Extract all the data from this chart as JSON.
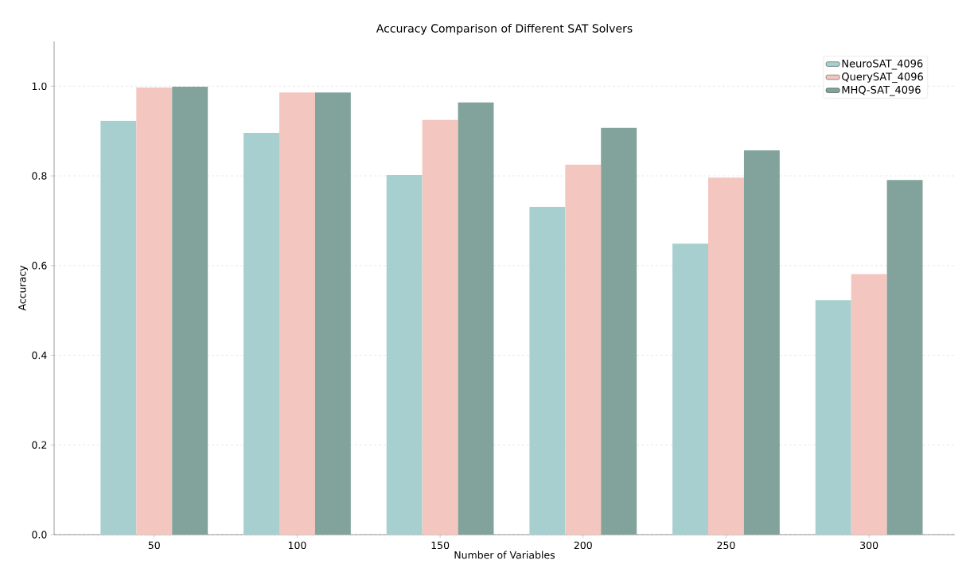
{
  "chart_data": {
    "type": "bar",
    "title": "Accuracy Comparison of Different SAT Solvers",
    "xlabel": "Number of Variables",
    "ylabel": "Accuracy",
    "categories": [
      "50",
      "100",
      "150",
      "200",
      "250",
      "300"
    ],
    "series": [
      {
        "name": "NeuroSAT_4096",
        "color": "#a8cfcf",
        "values": [
          0.923,
          0.896,
          0.802,
          0.731,
          0.649,
          0.523
        ]
      },
      {
        "name": "QuerySAT_4096",
        "color": "#f4c6c0",
        "values": [
          0.997,
          0.986,
          0.925,
          0.825,
          0.796,
          0.581
        ]
      },
      {
        "name": "MHQ-SAT_4096",
        "color": "#82a39b",
        "values": [
          0.999,
          0.986,
          0.964,
          0.907,
          0.857,
          0.791
        ]
      }
    ],
    "ylim": [
      0,
      1.1
    ],
    "yticks": [
      {
        "value": 0,
        "label": "0.0"
      },
      {
        "value": 0.2,
        "label": "0.2"
      },
      {
        "value": 0.4,
        "label": "0.4"
      },
      {
        "value": 0.6,
        "label": "0.6"
      },
      {
        "value": 0.8,
        "label": "0.8"
      },
      {
        "value": 1.0,
        "label": "1.0"
      }
    ],
    "grid": "y",
    "legend": "top right"
  }
}
